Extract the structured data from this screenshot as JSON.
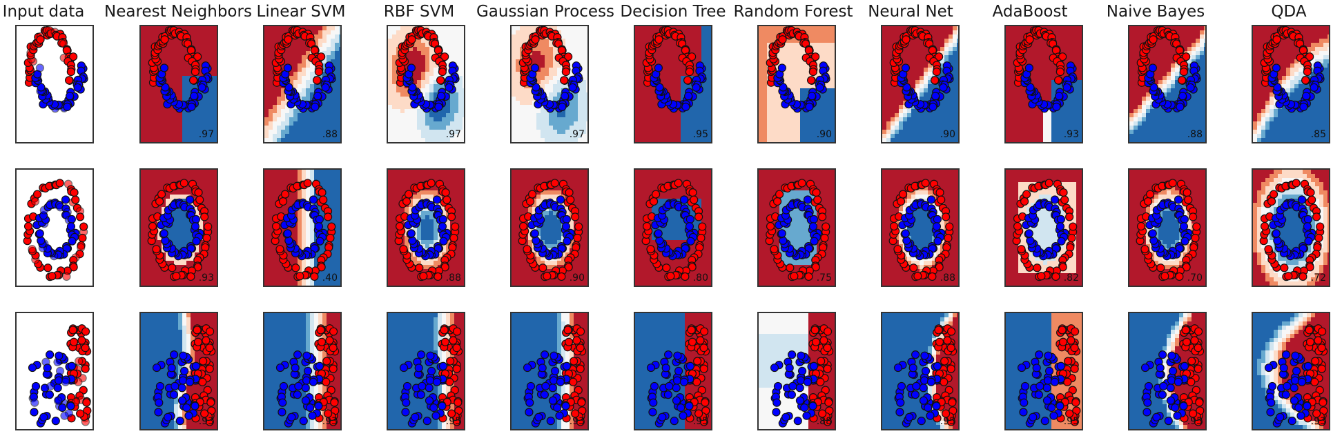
{
  "chart_data": {
    "type": "scatter",
    "columns": [
      "Input data",
      "Nearest Neighbors",
      "Linear SVM",
      "RBF SVM",
      "Gaussian Process",
      "Decision Tree",
      "Random Forest",
      "Neural Net",
      "AdaBoost",
      "Naive Bayes",
      "QDA"
    ],
    "datasets": [
      "moons",
      "circles",
      "linearly_separable"
    ],
    "scores": [
      [
        "",
        ".97",
        ".88",
        ".97",
        ".97",
        ".95",
        ".90",
        ".90",
        ".93",
        ".88",
        ".85"
      ],
      [
        "",
        ".93",
        ".40",
        ".88",
        ".90",
        ".80",
        ".75",
        ".88",
        ".82",
        ".70",
        ".72"
      ],
      [
        "",
        ".93",
        ".93",
        ".95",
        ".93",
        ".95",
        ".88",
        ".95",
        ".95",
        ".95",
        ".93"
      ]
    ],
    "class_colors": {
      "class_0": "#ff0000",
      "class_1": "#0000ff"
    },
    "background_colormap": [
      "#b2182b",
      "#ef8a62",
      "#fddbc7",
      "#f7f7f7",
      "#d1e5f0",
      "#67a9cf",
      "#2166ac"
    ]
  }
}
